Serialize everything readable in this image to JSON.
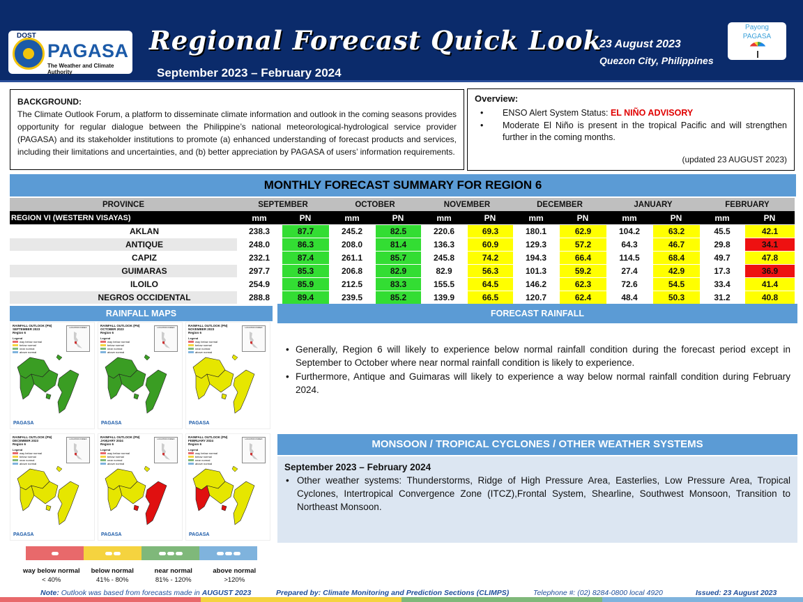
{
  "header": {
    "logo_dost": "DOST",
    "logo_name": "PAGASA",
    "logo_tagline": "The Weather and Climate Authority",
    "title": "Regional Forecast Quick Look",
    "subtitle": "September 2023 – February 2024",
    "date": "23 August 2023",
    "place": "Quezon City, Philippines",
    "payong_line1": "Payong",
    "payong_line2": "PAGASA"
  },
  "background": {
    "heading": "BACKGROUND:",
    "text": "The Climate Outlook Forum, a platform to disseminate climate information and outlook in the coming seasons provides opportunity for regular dialogue between the Philippine’s national meteorological-hydrological service provider (PAGASA) and its stakeholder institutions to promote (a) enhanced understanding of forecast products and services, including their limitations and uncertainties, and (b) better appreciation by PAGASA of users’ information requirements."
  },
  "overview": {
    "heading": "Overview:",
    "enso_label": "ENSO Alert System Status:",
    "enso_status": "EL NIÑO ADVISORY",
    "item2": "Moderate El Niño is present in the tropical Pacific and will strengthen further in the coming months.",
    "updated": "(updated 23 AUGUST 2023)"
  },
  "summary": {
    "title": "MONTHLY FORECAST SUMMARY FOR REGION 6",
    "province_header": "PROVINCE",
    "region_label": "REGION VI (WESTERN VISAYAS)",
    "months": [
      "SEPTEMBER",
      "OCTOBER",
      "NOVEMBER",
      "DECEMBER",
      "JANUARY",
      "FEBRUARY"
    ],
    "sub_mm": "mm",
    "sub_pn": "PN",
    "rows": [
      {
        "province": "AKLAN",
        "cells": [
          [
            "238.3",
            "87.7",
            "g"
          ],
          [
            "245.2",
            "82.5",
            "g"
          ],
          [
            "220.6",
            "69.3",
            "y"
          ],
          [
            "180.1",
            "62.9",
            "y"
          ],
          [
            "104.2",
            "63.2",
            "y"
          ],
          [
            "45.5",
            "42.1",
            "y"
          ]
        ]
      },
      {
        "province": "ANTIQUE",
        "cells": [
          [
            "248.0",
            "86.3",
            "g"
          ],
          [
            "208.0",
            "81.4",
            "g"
          ],
          [
            "136.3",
            "60.9",
            "y"
          ],
          [
            "129.3",
            "57.2",
            "y"
          ],
          [
            "64.3",
            "46.7",
            "y"
          ],
          [
            "29.8",
            "34.1",
            "r"
          ]
        ]
      },
      {
        "province": "CAPIZ",
        "cells": [
          [
            "232.1",
            "87.4",
            "g"
          ],
          [
            "261.1",
            "85.7",
            "g"
          ],
          [
            "245.8",
            "74.2",
            "y"
          ],
          [
            "194.3",
            "66.4",
            "y"
          ],
          [
            "114.5",
            "68.4",
            "y"
          ],
          [
            "49.7",
            "47.8",
            "y"
          ]
        ]
      },
      {
        "province": "GUIMARAS",
        "cells": [
          [
            "297.7",
            "85.3",
            "g"
          ],
          [
            "206.8",
            "82.9",
            "g"
          ],
          [
            "82.9",
            "56.3",
            "y"
          ],
          [
            "101.3",
            "59.2",
            "y"
          ],
          [
            "27.4",
            "42.9",
            "y"
          ],
          [
            "17.3",
            "36.9",
            "r"
          ]
        ]
      },
      {
        "province": "ILOILO",
        "cells": [
          [
            "254.9",
            "85.9",
            "g"
          ],
          [
            "212.5",
            "83.3",
            "g"
          ],
          [
            "155.5",
            "64.5",
            "y"
          ],
          [
            "146.2",
            "62.3",
            "y"
          ],
          [
            "72.6",
            "54.5",
            "y"
          ],
          [
            "33.4",
            "41.4",
            "y"
          ]
        ]
      },
      {
        "province": "NEGROS OCCIDENTAL",
        "cells": [
          [
            "288.8",
            "89.4",
            "g"
          ],
          [
            "239.5",
            "85.2",
            "g"
          ],
          [
            "139.9",
            "66.5",
            "y"
          ],
          [
            "120.7",
            "62.4",
            "y"
          ],
          [
            "48.4",
            "50.3",
            "y"
          ],
          [
            "31.2",
            "40.8",
            "y"
          ]
        ]
      }
    ],
    "colors": {
      "g": "#33dd33",
      "y": "#ffff00",
      "r": "#ee1111"
    }
  },
  "rainfall_maps": {
    "title": "RAINFALL MAPS",
    "maps": [
      {
        "title": "RAINFALL OUTLOOK (PN)",
        "month": "SEPTEMBER 2023",
        "region": "Region 6",
        "fill": "#3a9d23"
      },
      {
        "title": "RAINFALL OUTLOOK (PN)",
        "month": "OCTOBER 2023",
        "region": "Region 6",
        "fill": "#3a9d23"
      },
      {
        "title": "RAINFALL OUTLOOK (PN)",
        "month": "NOVEMBER 2023",
        "region": "Region 6",
        "fill": "#e6e600"
      },
      {
        "title": "RAINFALL OUTLOOK (PN)",
        "month": "DECEMBER 2023",
        "region": "Region 6",
        "fill": "#e6e600"
      },
      {
        "title": "RAINFALL OUTLOOK (PN)",
        "month": "JANUARY 2024",
        "region": "Region 6",
        "fill": "#e6e600"
      },
      {
        "title": "RAINFALL OUTLOOK (PN)",
        "month": "FEBRUARY 2024",
        "region": "Region 6",
        "fill": "#e6e600"
      }
    ],
    "legend_title": "Legend",
    "locator_label": "LOCATION INDEX",
    "brand": "PAGASA"
  },
  "categories": [
    {
      "label": "way below normal",
      "range": "< 40%",
      "color": "#e8696b"
    },
    {
      "label": "below normal",
      "range": "41% - 80%",
      "color": "#f5d33f"
    },
    {
      "label": "near normal",
      "range": "81% - 120%",
      "color": "#7fb87a"
    },
    {
      "label": "above normal",
      "range": ">120%",
      "color": "#7fb3dd"
    }
  ],
  "forecast_rainfall": {
    "title": "FORECAST RAINFALL",
    "items": [
      "Generally, Region 6 will likely to experience below normal rainfall condition during the forecast period except in September to October where near normal rainfall condition is likely to experience.",
      "Furthermore, Antique and Guimaras will likely to experience a way below normal rainfall condition during February 2024."
    ]
  },
  "monsoon": {
    "title": "MONSOON / TROPICAL CYCLONES / OTHER WEATHER SYSTEMS",
    "period": "September 2023 – February 2024",
    "item": "Other weather systems: Thunderstorms,  Ridge of High Pressure Area,  Easterlies, Low Pressure Area, Tropical Cyclones, Intertropical Convergence Zone (ITCZ),Frontal System, Shearline, Southwest Monsoon, Transition to Northeast Monsoon."
  },
  "footer": {
    "note_label": "Note:",
    "note_text": "Outlook was based from forecasts made in",
    "note_month": "AUGUST 2023",
    "prepared": "Prepared by: Climate Monitoring and Prediction Sections (CLIMPS)",
    "telephone": "Telephone #:  (02) 8284-0800 local 4920",
    "issued": "Issued: 23 August 2023"
  }
}
